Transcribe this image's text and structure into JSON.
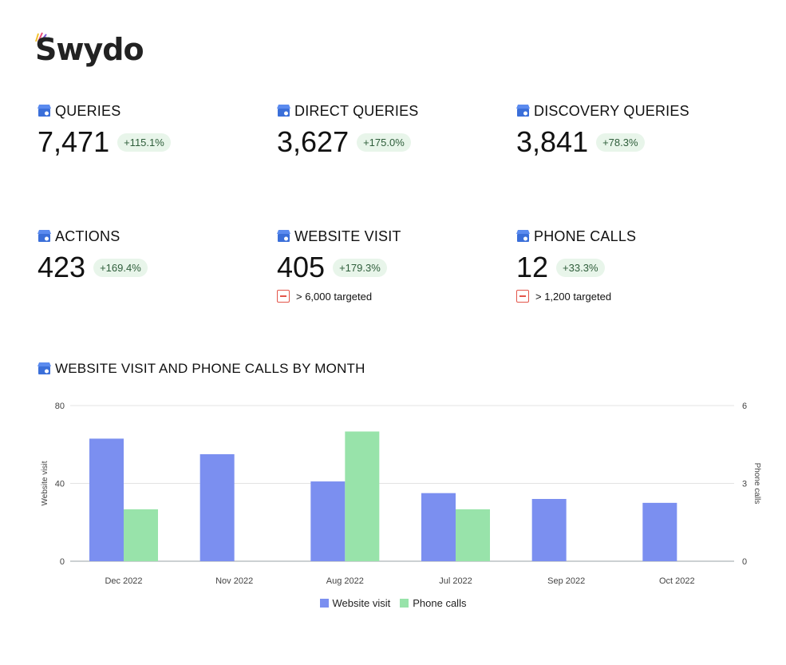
{
  "brand": {
    "name": "Swydo"
  },
  "colors": {
    "accent_bar_1": "#7b8ff0",
    "accent_bar_2": "#98e3aa",
    "badge_bg": "#e8f5ea",
    "badge_text": "#2f5e3b",
    "target_icon": "#e3554a"
  },
  "kpis": [
    {
      "icon": "google-business-icon",
      "title": "QUERIES",
      "value": "7,471",
      "change": "+115.1%"
    },
    {
      "icon": "google-business-icon",
      "title": "DIRECT QUERIES",
      "value": "3,627",
      "change": "+175.0%"
    },
    {
      "icon": "google-business-icon",
      "title": "DISCOVERY QUERIES",
      "value": "3,841",
      "change": "+78.3%"
    },
    {
      "icon": "google-business-icon",
      "title": "ACTIONS",
      "value": "423",
      "change": "+169.4%"
    },
    {
      "icon": "google-business-icon",
      "title": "WEBSITE VISIT",
      "value": "405",
      "change": "+179.3%",
      "target": "> 6,000 targeted"
    },
    {
      "icon": "google-business-icon",
      "title": "PHONE CALLS",
      "value": "12",
      "change": "+33.3%",
      "target": "> 1,200 targeted"
    }
  ],
  "chart_data": {
    "type": "bar",
    "title": "WEBSITE VISIT AND PHONE CALLS BY MONTH",
    "categories": [
      "Dec 2022",
      "Nov 2022",
      "Aug 2022",
      "Jul 2022",
      "Sep 2022",
      "Oct 2022"
    ],
    "series": [
      {
        "name": "Website visit",
        "axis": "left",
        "color": "#7b8ff0",
        "values": [
          63,
          55,
          41,
          35,
          32,
          30
        ]
      },
      {
        "name": "Phone calls",
        "axis": "right",
        "color": "#98e3aa",
        "values": [
          2,
          0,
          5,
          2,
          0,
          0
        ]
      }
    ],
    "ylabel": "Website visit",
    "ylabel_right": "Phone calls",
    "ylim": [
      0,
      80
    ],
    "ylim_right": [
      0,
      6
    ],
    "yticks": [
      0,
      40,
      80
    ],
    "yticks_right": [
      0,
      3,
      6
    ],
    "grid": true,
    "legend_position": "bottom-center"
  }
}
